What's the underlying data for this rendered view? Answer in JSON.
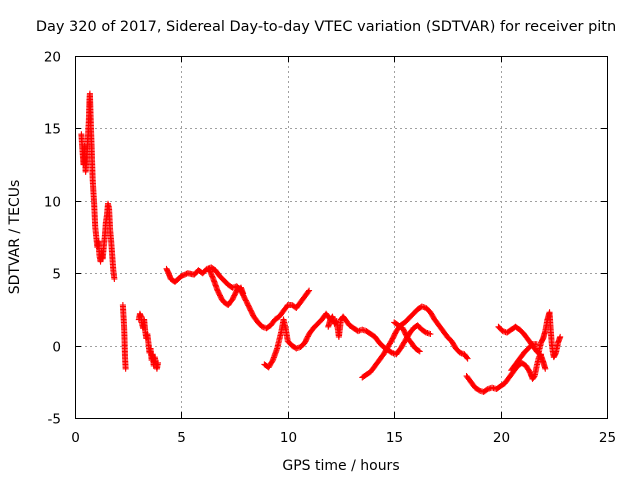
{
  "colors": {
    "series": "#ff0000",
    "grid": "#a0a0a0",
    "axis": "#000000",
    "background": "#ffffff"
  },
  "chart_data": {
    "type": "scatter",
    "title": "Day 320 of 2017, Sidereal Day-to-day VTEC variation (SDTVAR) for receiver pitn",
    "xlabel": "GPS time / hours",
    "ylabel": "SDTVAR / TECUs",
    "xlim": [
      0,
      25
    ],
    "ylim": [
      -5,
      20
    ],
    "xticks": [
      0,
      5,
      10,
      15,
      20,
      25
    ],
    "yticks": [
      -5,
      0,
      5,
      10,
      15,
      20
    ],
    "grid": true,
    "marker": "+",
    "series": [
      {
        "name": "SDTVAR",
        "segments": [
          [
            [
              0.3,
              14.6
            ],
            [
              0.35,
              13.5
            ],
            [
              0.4,
              12.5
            ],
            [
              0.45,
              13.8
            ],
            [
              0.5,
              12.0
            ],
            [
              0.55,
              13.0
            ],
            [
              0.6,
              14.2
            ],
            [
              0.65,
              15.5
            ],
            [
              0.68,
              17.0
            ],
            [
              0.7,
              17.4
            ],
            [
              0.72,
              16.5
            ],
            [
              0.75,
              15.0
            ],
            [
              0.78,
              13.8
            ],
            [
              0.8,
              12.8
            ],
            [
              0.83,
              11.5
            ],
            [
              0.87,
              10.5
            ],
            [
              0.9,
              9.8
            ],
            [
              0.95,
              8.2
            ],
            [
              1.0,
              7.5
            ],
            [
              1.05,
              6.8
            ],
            [
              1.1,
              7.2
            ],
            [
              1.15,
              6.2
            ],
            [
              1.2,
              5.8
            ],
            [
              1.25,
              6.5
            ],
            [
              1.3,
              6.0
            ],
            [
              1.35,
              6.8
            ],
            [
              1.4,
              7.5
            ],
            [
              1.45,
              8.5
            ],
            [
              1.5,
              9.0
            ],
            [
              1.55,
              9.8
            ],
            [
              1.6,
              9.5
            ],
            [
              1.65,
              8.0
            ],
            [
              1.7,
              7.2
            ],
            [
              1.75,
              6.2
            ],
            [
              1.8,
              5.2
            ],
            [
              1.85,
              4.6
            ]
          ],
          [
            [
              2.25,
              2.8
            ],
            [
              2.28,
              2.0
            ],
            [
              2.3,
              1.5
            ],
            [
              2.32,
              0.8
            ],
            [
              2.35,
              -0.8
            ],
            [
              2.38,
              -1.6
            ]
          ],
          [
            [
              3.0,
              1.8
            ],
            [
              3.05,
              2.2
            ],
            [
              3.1,
              2.0
            ],
            [
              3.15,
              1.5
            ],
            [
              3.2,
              1.2
            ],
            [
              3.25,
              1.8
            ],
            [
              3.3,
              1.0
            ],
            [
              3.35,
              0.5
            ],
            [
              3.4,
              0.8
            ],
            [
              3.45,
              0.2
            ],
            [
              3.5,
              -0.5
            ],
            [
              3.55,
              -0.2
            ],
            [
              3.6,
              -1.0
            ],
            [
              3.65,
              -0.6
            ],
            [
              3.7,
              -1.4
            ],
            [
              3.75,
              -0.8
            ],
            [
              3.8,
              -1.2
            ],
            [
              3.85,
              -1.6
            ],
            [
              3.9,
              -1.2
            ]
          ],
          [
            [
              4.3,
              5.3
            ],
            [
              4.4,
              5.0
            ],
            [
              4.5,
              4.6
            ],
            [
              4.7,
              4.4
            ],
            [
              5.0,
              4.8
            ],
            [
              5.3,
              5.0
            ],
            [
              5.6,
              4.9
            ],
            [
              5.8,
              5.2
            ],
            [
              6.0,
              5.0
            ],
            [
              6.2,
              5.3
            ],
            [
              6.4,
              5.4
            ],
            [
              6.6,
              5.2
            ],
            [
              6.8,
              4.8
            ],
            [
              7.0,
              4.5
            ],
            [
              7.2,
              4.2
            ],
            [
              7.4,
              4.0
            ],
            [
              7.6,
              4.1
            ],
            [
              7.8,
              3.8
            ],
            [
              8.0,
              3.2
            ],
            [
              8.2,
              2.6
            ],
            [
              8.4,
              2.0
            ],
            [
              8.6,
              1.6
            ],
            [
              8.8,
              1.3
            ],
            [
              9.0,
              1.2
            ],
            [
              9.2,
              1.4
            ],
            [
              9.4,
              1.8
            ],
            [
              9.6,
              2.0
            ],
            [
              9.8,
              2.4
            ],
            [
              10.0,
              2.8
            ],
            [
              10.2,
              2.8
            ],
            [
              10.4,
              2.6
            ],
            [
              10.6,
              3.0
            ],
            [
              10.8,
              3.4
            ],
            [
              11.0,
              3.8
            ]
          ],
          [
            [
              6.3,
              5.3
            ],
            [
              6.5,
              4.6
            ],
            [
              6.7,
              3.8
            ],
            [
              6.9,
              3.2
            ],
            [
              7.0,
              3.0
            ],
            [
              7.2,
              2.8
            ],
            [
              7.4,
              3.2
            ],
            [
              7.6,
              3.8
            ],
            [
              7.8,
              4.0
            ],
            [
              7.9,
              3.6
            ]
          ],
          [
            [
              8.9,
              -1.3
            ],
            [
              9.1,
              -1.5
            ],
            [
              9.3,
              -1.0
            ],
            [
              9.5,
              -0.2
            ],
            [
              9.7,
              1.0
            ],
            [
              9.8,
              1.8
            ],
            [
              9.9,
              1.2
            ],
            [
              10.0,
              0.3
            ],
            [
              10.2,
              0.0
            ],
            [
              10.4,
              -0.2
            ],
            [
              10.6,
              -0.1
            ],
            [
              10.8,
              0.2
            ],
            [
              11.0,
              0.8
            ],
            [
              11.2,
              1.2
            ],
            [
              11.4,
              1.5
            ],
            [
              11.6,
              1.8
            ],
            [
              11.8,
              2.2
            ],
            [
              12.0,
              1.8
            ]
          ],
          [
            [
              11.9,
              1.3
            ],
            [
              12.0,
              1.8
            ],
            [
              12.1,
              2.0
            ],
            [
              12.2,
              1.5
            ],
            [
              12.3,
              1.7
            ],
            [
              12.4,
              0.6
            ],
            [
              12.5,
              1.8
            ],
            [
              12.6,
              2.0
            ],
            [
              12.7,
              1.8
            ],
            [
              12.9,
              1.4
            ],
            [
              13.1,
              1.2
            ],
            [
              13.3,
              1.0
            ],
            [
              13.5,
              1.1
            ],
            [
              13.7,
              1.0
            ],
            [
              13.9,
              0.8
            ],
            [
              14.1,
              0.6
            ],
            [
              14.3,
              0.2
            ],
            [
              14.5,
              -0.1
            ],
            [
              14.7,
              -0.3
            ],
            [
              14.9,
              -0.5
            ],
            [
              15.1,
              -0.6
            ],
            [
              15.3,
              -0.2
            ],
            [
              15.5,
              0.3
            ],
            [
              15.7,
              0.8
            ],
            [
              15.9,
              1.2
            ],
            [
              16.1,
              1.4
            ],
            [
              16.3,
              1.1
            ],
            [
              16.5,
              0.9
            ],
            [
              16.7,
              0.8
            ]
          ],
          [
            [
              13.5,
              -2.2
            ],
            [
              13.7,
              -2.0
            ],
            [
              13.9,
              -1.8
            ],
            [
              14.1,
              -1.4
            ],
            [
              14.3,
              -1.0
            ],
            [
              14.5,
              -0.6
            ],
            [
              14.7,
              -0.1
            ],
            [
              14.9,
              0.4
            ],
            [
              15.1,
              1.0
            ],
            [
              15.3,
              1.4
            ],
            [
              15.5,
              1.6
            ],
            [
              15.7,
              1.9
            ],
            [
              15.9,
              2.2
            ],
            [
              16.1,
              2.5
            ],
            [
              16.3,
              2.7
            ],
            [
              16.5,
              2.6
            ],
            [
              16.7,
              2.3
            ],
            [
              16.9,
              1.8
            ],
            [
              17.1,
              1.4
            ],
            [
              17.3,
              1.0
            ],
            [
              17.5,
              0.6
            ],
            [
              17.7,
              0.3
            ],
            [
              17.9,
              -0.2
            ],
            [
              18.1,
              -0.5
            ],
            [
              18.3,
              -0.6
            ],
            [
              18.45,
              -0.9
            ]
          ],
          [
            [
              15.0,
              1.6
            ],
            [
              15.2,
              1.4
            ],
            [
              15.4,
              1.2
            ],
            [
              15.6,
              0.6
            ],
            [
              15.8,
              0.2
            ],
            [
              16.0,
              -0.2
            ],
            [
              16.2,
              -0.4
            ]
          ],
          [
            [
              18.4,
              -2.1
            ],
            [
              18.6,
              -2.5
            ],
            [
              18.8,
              -2.9
            ],
            [
              19.0,
              -3.1
            ],
            [
              19.2,
              -3.2
            ],
            [
              19.4,
              -3.0
            ],
            [
              19.6,
              -2.9
            ],
            [
              19.8,
              -3.0
            ],
            [
              20.0,
              -2.8
            ],
            [
              20.2,
              -2.6
            ],
            [
              20.4,
              -2.2
            ],
            [
              20.6,
              -1.8
            ],
            [
              20.8,
              -1.4
            ],
            [
              21.0,
              -1.2
            ],
            [
              21.2,
              -1.4
            ],
            [
              21.4,
              -1.9
            ],
            [
              21.5,
              -2.3
            ],
            [
              21.6,
              -2.1
            ],
            [
              21.7,
              -1.4
            ],
            [
              21.8,
              -0.8
            ],
            [
              21.9,
              -0.6
            ]
          ],
          [
            [
              19.9,
              1.3
            ],
            [
              20.1,
              1.0
            ],
            [
              20.3,
              0.9
            ],
            [
              20.5,
              1.1
            ],
            [
              20.7,
              1.3
            ],
            [
              20.9,
              1.1
            ],
            [
              21.1,
              0.8
            ],
            [
              21.3,
              0.4
            ],
            [
              21.5,
              0.0
            ],
            [
              21.7,
              -0.4
            ],
            [
              21.9,
              -0.7
            ],
            [
              22.0,
              -1.1
            ],
            [
              22.1,
              -1.6
            ]
          ],
          [
            [
              20.5,
              -1.7
            ],
            [
              20.7,
              -1.3
            ],
            [
              20.9,
              -0.9
            ],
            [
              21.1,
              -0.5
            ],
            [
              21.3,
              -0.2
            ],
            [
              21.5,
              0.1
            ],
            [
              21.7,
              0.1
            ]
          ],
          [
            [
              21.8,
              -0.4
            ],
            [
              21.9,
              0.2
            ],
            [
              22.0,
              0.5
            ],
            [
              22.1,
              1.0
            ],
            [
              22.2,
              1.8
            ],
            [
              22.3,
              2.3
            ],
            [
              22.35,
              1.2
            ],
            [
              22.4,
              0.2
            ],
            [
              22.45,
              -0.4
            ],
            [
              22.5,
              -0.8
            ],
            [
              22.6,
              -0.5
            ],
            [
              22.7,
              0.2
            ],
            [
              22.8,
              0.6
            ]
          ]
        ]
      }
    ]
  }
}
